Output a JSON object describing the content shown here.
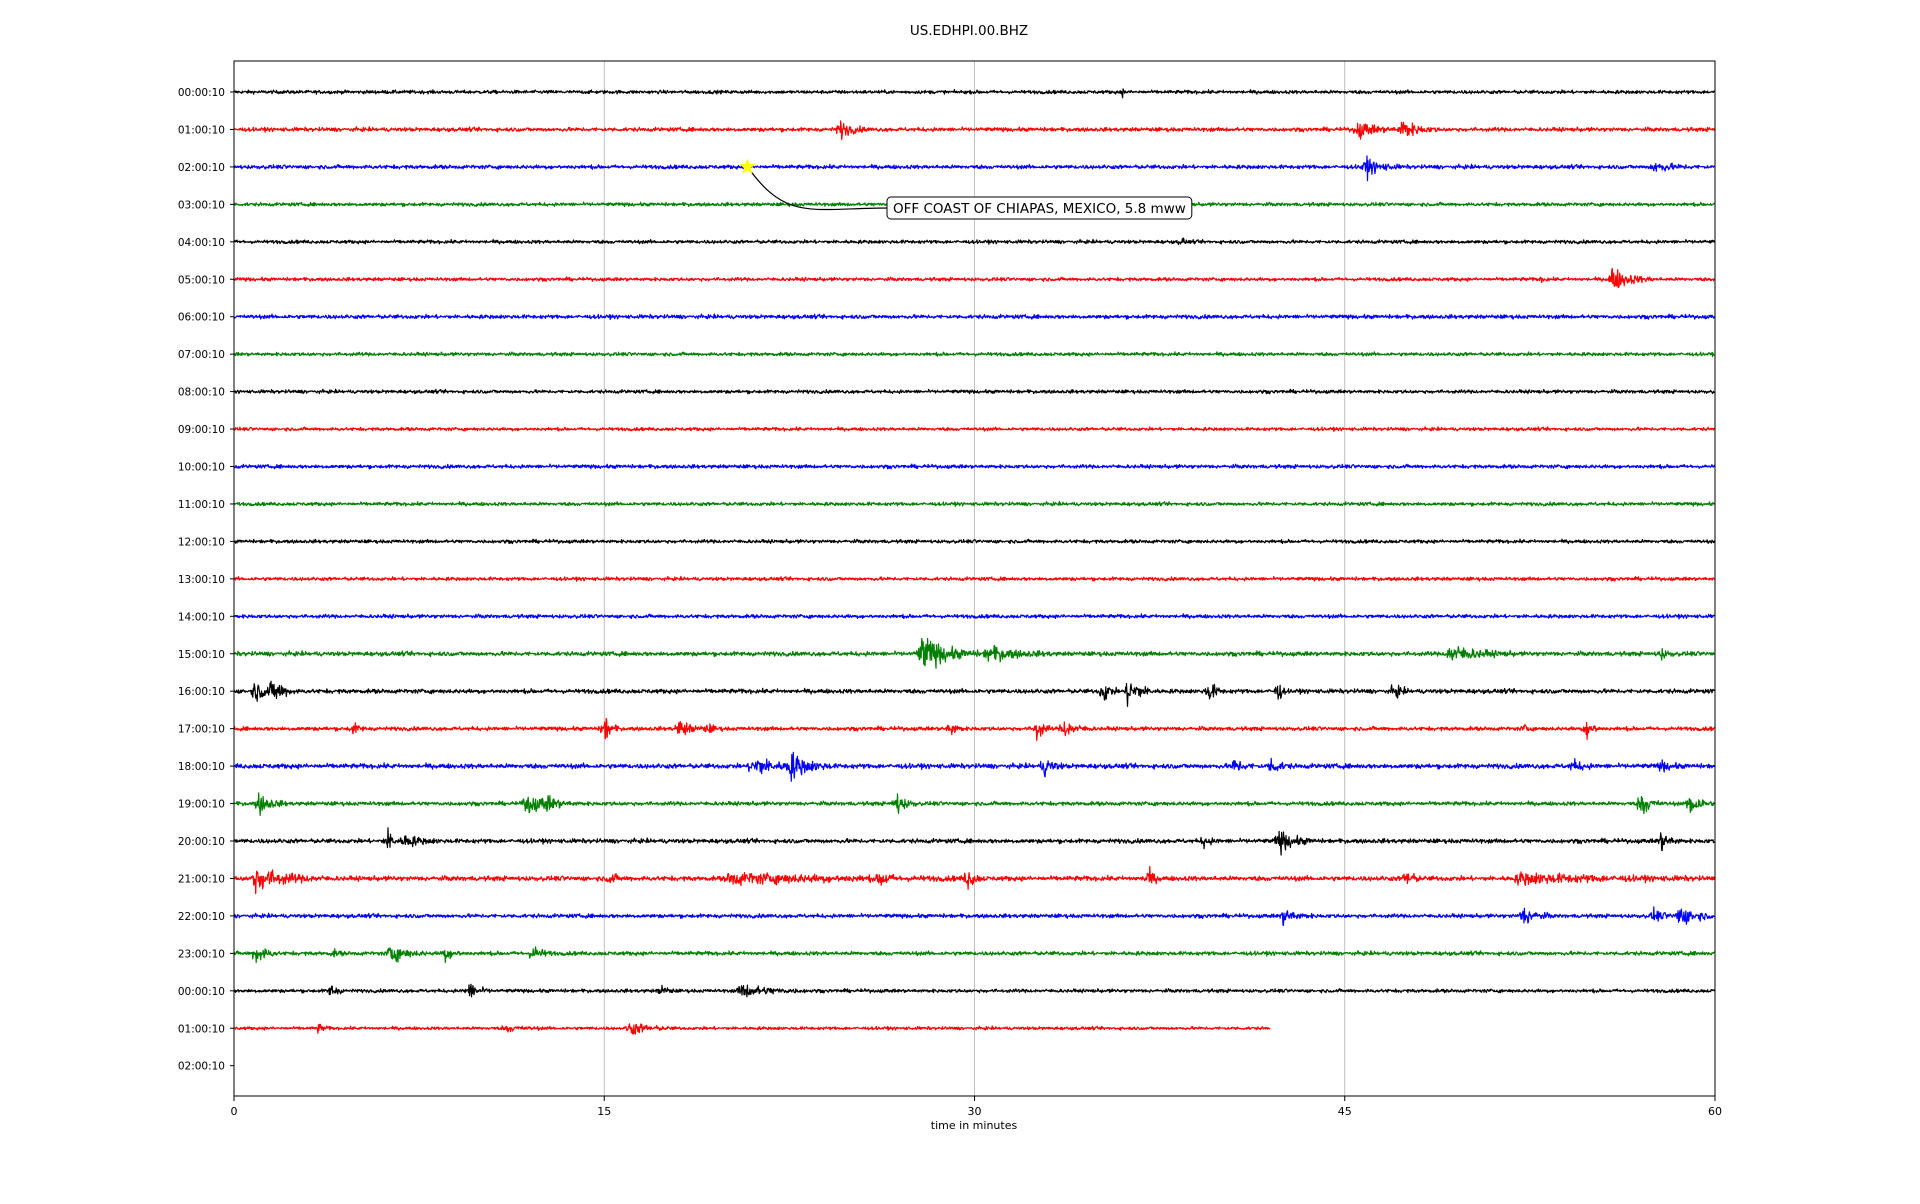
{
  "chart_data": {
    "type": "line",
    "title": "US.EDHPI.00.BHZ",
    "xlabel": "time in minutes",
    "ylabel": "",
    "xlim": [
      0,
      60
    ],
    "x_ticks": [
      "0",
      "15",
      "30",
      "45",
      "60"
    ],
    "x_tick_values": [
      0,
      15,
      30,
      45,
      60
    ],
    "grid": "vertical",
    "colors": [
      "#000000",
      "#ff0000",
      "#0000ff",
      "#008000"
    ],
    "row_labels": [
      "00:00:10",
      "01:00:10",
      "02:00:10",
      "03:00:10",
      "04:00:10",
      "05:00:10",
      "06:00:10",
      "07:00:10",
      "08:00:10",
      "09:00:10",
      "10:00:10",
      "11:00:10",
      "12:00:10",
      "13:00:10",
      "14:00:10",
      "15:00:10",
      "16:00:10",
      "17:00:10",
      "18:00:10",
      "19:00:10",
      "20:00:10",
      "21:00:10",
      "22:00:10",
      "23:00:10",
      "00:00:10",
      "01:00:10",
      "02:00:10"
    ],
    "rows": [
      {
        "noise": 0.16,
        "end": 60,
        "events": [
          [
            36,
            0.3,
            0.05
          ]
        ]
      },
      {
        "noise": 0.18,
        "end": 60,
        "events": [
          [
            24.5,
            0.9,
            0.4
          ],
          [
            45.5,
            0.8,
            0.6
          ],
          [
            47.3,
            1.0,
            0.5
          ]
        ]
      },
      {
        "noise": 0.18,
        "end": 60,
        "events": [
          [
            45.8,
            0.9,
            0.5
          ],
          [
            57.5,
            0.5,
            0.6
          ]
        ]
      },
      {
        "noise": 0.16,
        "end": 60,
        "events": []
      },
      {
        "noise": 0.16,
        "end": 60,
        "events": [
          [
            38.4,
            0.4,
            0.1
          ]
        ]
      },
      {
        "noise": 0.16,
        "end": 60,
        "events": [
          [
            55.8,
            1.2,
            0.6
          ],
          [
            53.0,
            0.3,
            0.1
          ]
        ]
      },
      {
        "noise": 0.18,
        "end": 60,
        "events": []
      },
      {
        "noise": 0.16,
        "end": 60,
        "events": []
      },
      {
        "noise": 0.16,
        "end": 60,
        "events": []
      },
      {
        "noise": 0.15,
        "end": 60,
        "events": []
      },
      {
        "noise": 0.17,
        "end": 60,
        "events": []
      },
      {
        "noise": 0.16,
        "end": 60,
        "events": []
      },
      {
        "noise": 0.16,
        "end": 60,
        "events": []
      },
      {
        "noise": 0.16,
        "end": 60,
        "events": []
      },
      {
        "noise": 0.17,
        "end": 60,
        "events": []
      },
      {
        "noise": 0.2,
        "end": 60,
        "events": [
          [
            27.8,
            2.0,
            0.8
          ],
          [
            30.5,
            0.8,
            0.9
          ],
          [
            49.2,
            0.9,
            0.9
          ],
          [
            57.8,
            0.6,
            0.2
          ]
        ]
      },
      {
        "noise": 0.2,
        "end": 60,
        "events": [
          [
            0.8,
            0.9,
            0.6
          ],
          [
            1.6,
            1.0,
            0.3
          ],
          [
            35.2,
            1.3,
            0.2
          ],
          [
            36.2,
            1.5,
            0.4
          ],
          [
            39.5,
            1.2,
            0.2
          ],
          [
            42.3,
            1.4,
            0.1
          ],
          [
            47.0,
            0.8,
            0.2
          ]
        ]
      },
      {
        "noise": 0.18,
        "end": 60,
        "events": [
          [
            4.8,
            0.6,
            0.2
          ],
          [
            15.0,
            1.5,
            0.2
          ],
          [
            18.0,
            0.9,
            0.4
          ],
          [
            19.2,
            0.5,
            0.2
          ],
          [
            29.0,
            0.9,
            0.2
          ],
          [
            32.5,
            1.4,
            0.2
          ],
          [
            33.6,
            0.9,
            0.4
          ],
          [
            52.3,
            0.5,
            0.1
          ],
          [
            54.8,
            1.2,
            0.2
          ]
        ]
      },
      {
        "noise": 0.22,
        "end": 60,
        "events": [
          [
            21.0,
            1.2,
            0.6
          ],
          [
            22.5,
            1.4,
            0.6
          ],
          [
            32.8,
            0.9,
            0.3
          ],
          [
            40.5,
            0.7,
            0.3
          ],
          [
            42.0,
            0.8,
            0.3
          ],
          [
            54.2,
            0.6,
            0.3
          ],
          [
            57.8,
            0.5,
            0.3
          ]
        ]
      },
      {
        "noise": 0.18,
        "end": 60,
        "events": [
          [
            1.0,
            1.0,
            0.4
          ],
          [
            11.8,
            1.2,
            0.5
          ],
          [
            12.6,
            0.6,
            0.5
          ],
          [
            26.8,
            1.2,
            0.3
          ],
          [
            57.0,
            1.3,
            0.3
          ],
          [
            59.0,
            1.5,
            0.3
          ]
        ]
      },
      {
        "noise": 0.2,
        "end": 60,
        "events": [
          [
            6.2,
            1.3,
            0.2
          ],
          [
            6.9,
            0.6,
            0.5
          ],
          [
            39.3,
            0.5,
            0.2
          ],
          [
            42.3,
            1.1,
            0.5
          ],
          [
            57.8,
            0.9,
            0.3
          ]
        ]
      },
      {
        "noise": 0.22,
        "end": 60,
        "events": [
          [
            0.8,
            1.2,
            1.0
          ],
          [
            15.2,
            0.6,
            0.2
          ],
          [
            20.0,
            0.5,
            3.5
          ],
          [
            26.2,
            1.0,
            0.2
          ],
          [
            29.7,
            1.2,
            0.2
          ],
          [
            37.0,
            1.0,
            0.2
          ],
          [
            47.5,
            1.0,
            0.2
          ],
          [
            52.0,
            0.5,
            2.5
          ]
        ]
      },
      {
        "noise": 0.18,
        "end": 60,
        "events": [
          [
            42.5,
            0.8,
            0.4
          ],
          [
            52.2,
            1.0,
            0.4
          ],
          [
            57.5,
            0.6,
            0.3
          ],
          [
            58.5,
            1.0,
            0.6
          ]
        ]
      },
      {
        "noise": 0.18,
        "end": 60,
        "events": [
          [
            0.9,
            1.1,
            0.3
          ],
          [
            6.3,
            1.0,
            0.5
          ],
          [
            8.5,
            0.7,
            0.3
          ],
          [
            12.1,
            0.8,
            0.3
          ],
          [
            4.0,
            0.3,
            0.2
          ]
        ]
      },
      {
        "noise": 0.16,
        "end": 60,
        "events": [
          [
            3.9,
            0.8,
            0.2
          ],
          [
            9.5,
            0.9,
            0.3
          ],
          [
            17.3,
            0.6,
            0.2
          ],
          [
            20.5,
            0.7,
            0.9
          ]
        ]
      },
      {
        "noise": 0.14,
        "end": 42,
        "events": [
          [
            3.4,
            0.4,
            0.2
          ],
          [
            16.0,
            0.7,
            0.6
          ],
          [
            11.0,
            0.3,
            0.5
          ]
        ]
      },
      {
        "noise": 0,
        "end": 0,
        "events": []
      }
    ],
    "annotation": {
      "text": "OFF COAST OF CHIAPAS, MEXICO, 5.8 mww",
      "row": 2,
      "x": 20.8,
      "marker_color": "#ffff00"
    }
  }
}
